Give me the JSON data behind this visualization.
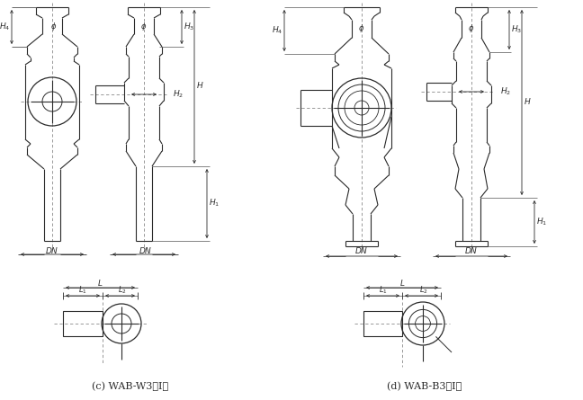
{
  "title_c": "(c) WAB-W3（Ⅰ）",
  "title_d": "(d) WAB-B3（Ⅰ）",
  "bg_color": "#ffffff",
  "line_color": "#2a2a2a",
  "center_color": "#888888",
  "figsize": [
    6.48,
    4.45
  ],
  "dpi": 100
}
